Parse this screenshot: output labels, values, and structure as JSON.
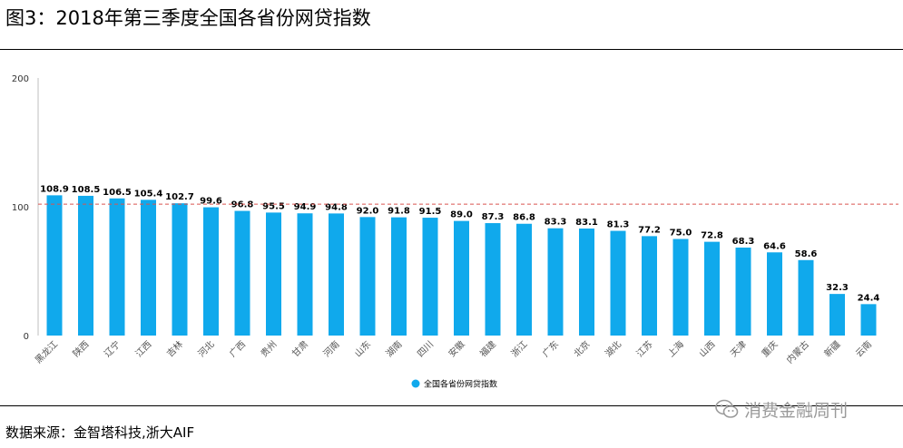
{
  "title": "图3：2018年第三季度全国各省份网贷指数",
  "source": "数据来源：金智塔科技,浙大AIF",
  "watermark": {
    "text": "消费金融周刊",
    "icon": "wechat-icon"
  },
  "colors": {
    "bar": "#10a9ec",
    "reference_line": "#d9534f",
    "axis": "#bfbfbf"
  },
  "chart_data": {
    "type": "bar",
    "categories": [
      "黑龙江",
      "陕西",
      "辽宁",
      "江西",
      "吉林",
      "河北",
      "广西",
      "贵州",
      "甘肃",
      "河南",
      "山东",
      "湖南",
      "四川",
      "安徽",
      "福建",
      "浙江",
      "广东",
      "北京",
      "湖北",
      "江苏",
      "上海",
      "山西",
      "天津",
      "重庆",
      "内蒙古",
      "新疆",
      "云南"
    ],
    "series": [
      {
        "name": "全国各省份网贷指数",
        "values": [
          108.9,
          108.5,
          106.5,
          105.4,
          102.7,
          99.6,
          96.8,
          95.5,
          94.9,
          94.8,
          92.0,
          91.8,
          91.5,
          89.0,
          87.3,
          86.8,
          83.3,
          83.1,
          81.3,
          77.2,
          75.0,
          72.8,
          68.3,
          64.6,
          58.6,
          32.3,
          24.4
        ],
        "labels": [
          "108.9",
          "108.5",
          "106.5",
          "105.4",
          "102.7",
          "99.6",
          "96.8",
          "95.5",
          "94.9",
          "94.8",
          "92.0",
          "91.8",
          "91.5",
          "89.0",
          "87.3",
          "86.8",
          "83.3",
          "83.1",
          "81.3",
          "77.2",
          "75.0",
          "72.8",
          "68.3",
          "64.6",
          "58.6",
          "32.3",
          "24.4"
        ]
      }
    ],
    "yticks": [
      "0",
      "100",
      "200"
    ],
    "ylim": [
      0,
      200
    ],
    "reference_line": 102,
    "legend": "bottom"
  }
}
